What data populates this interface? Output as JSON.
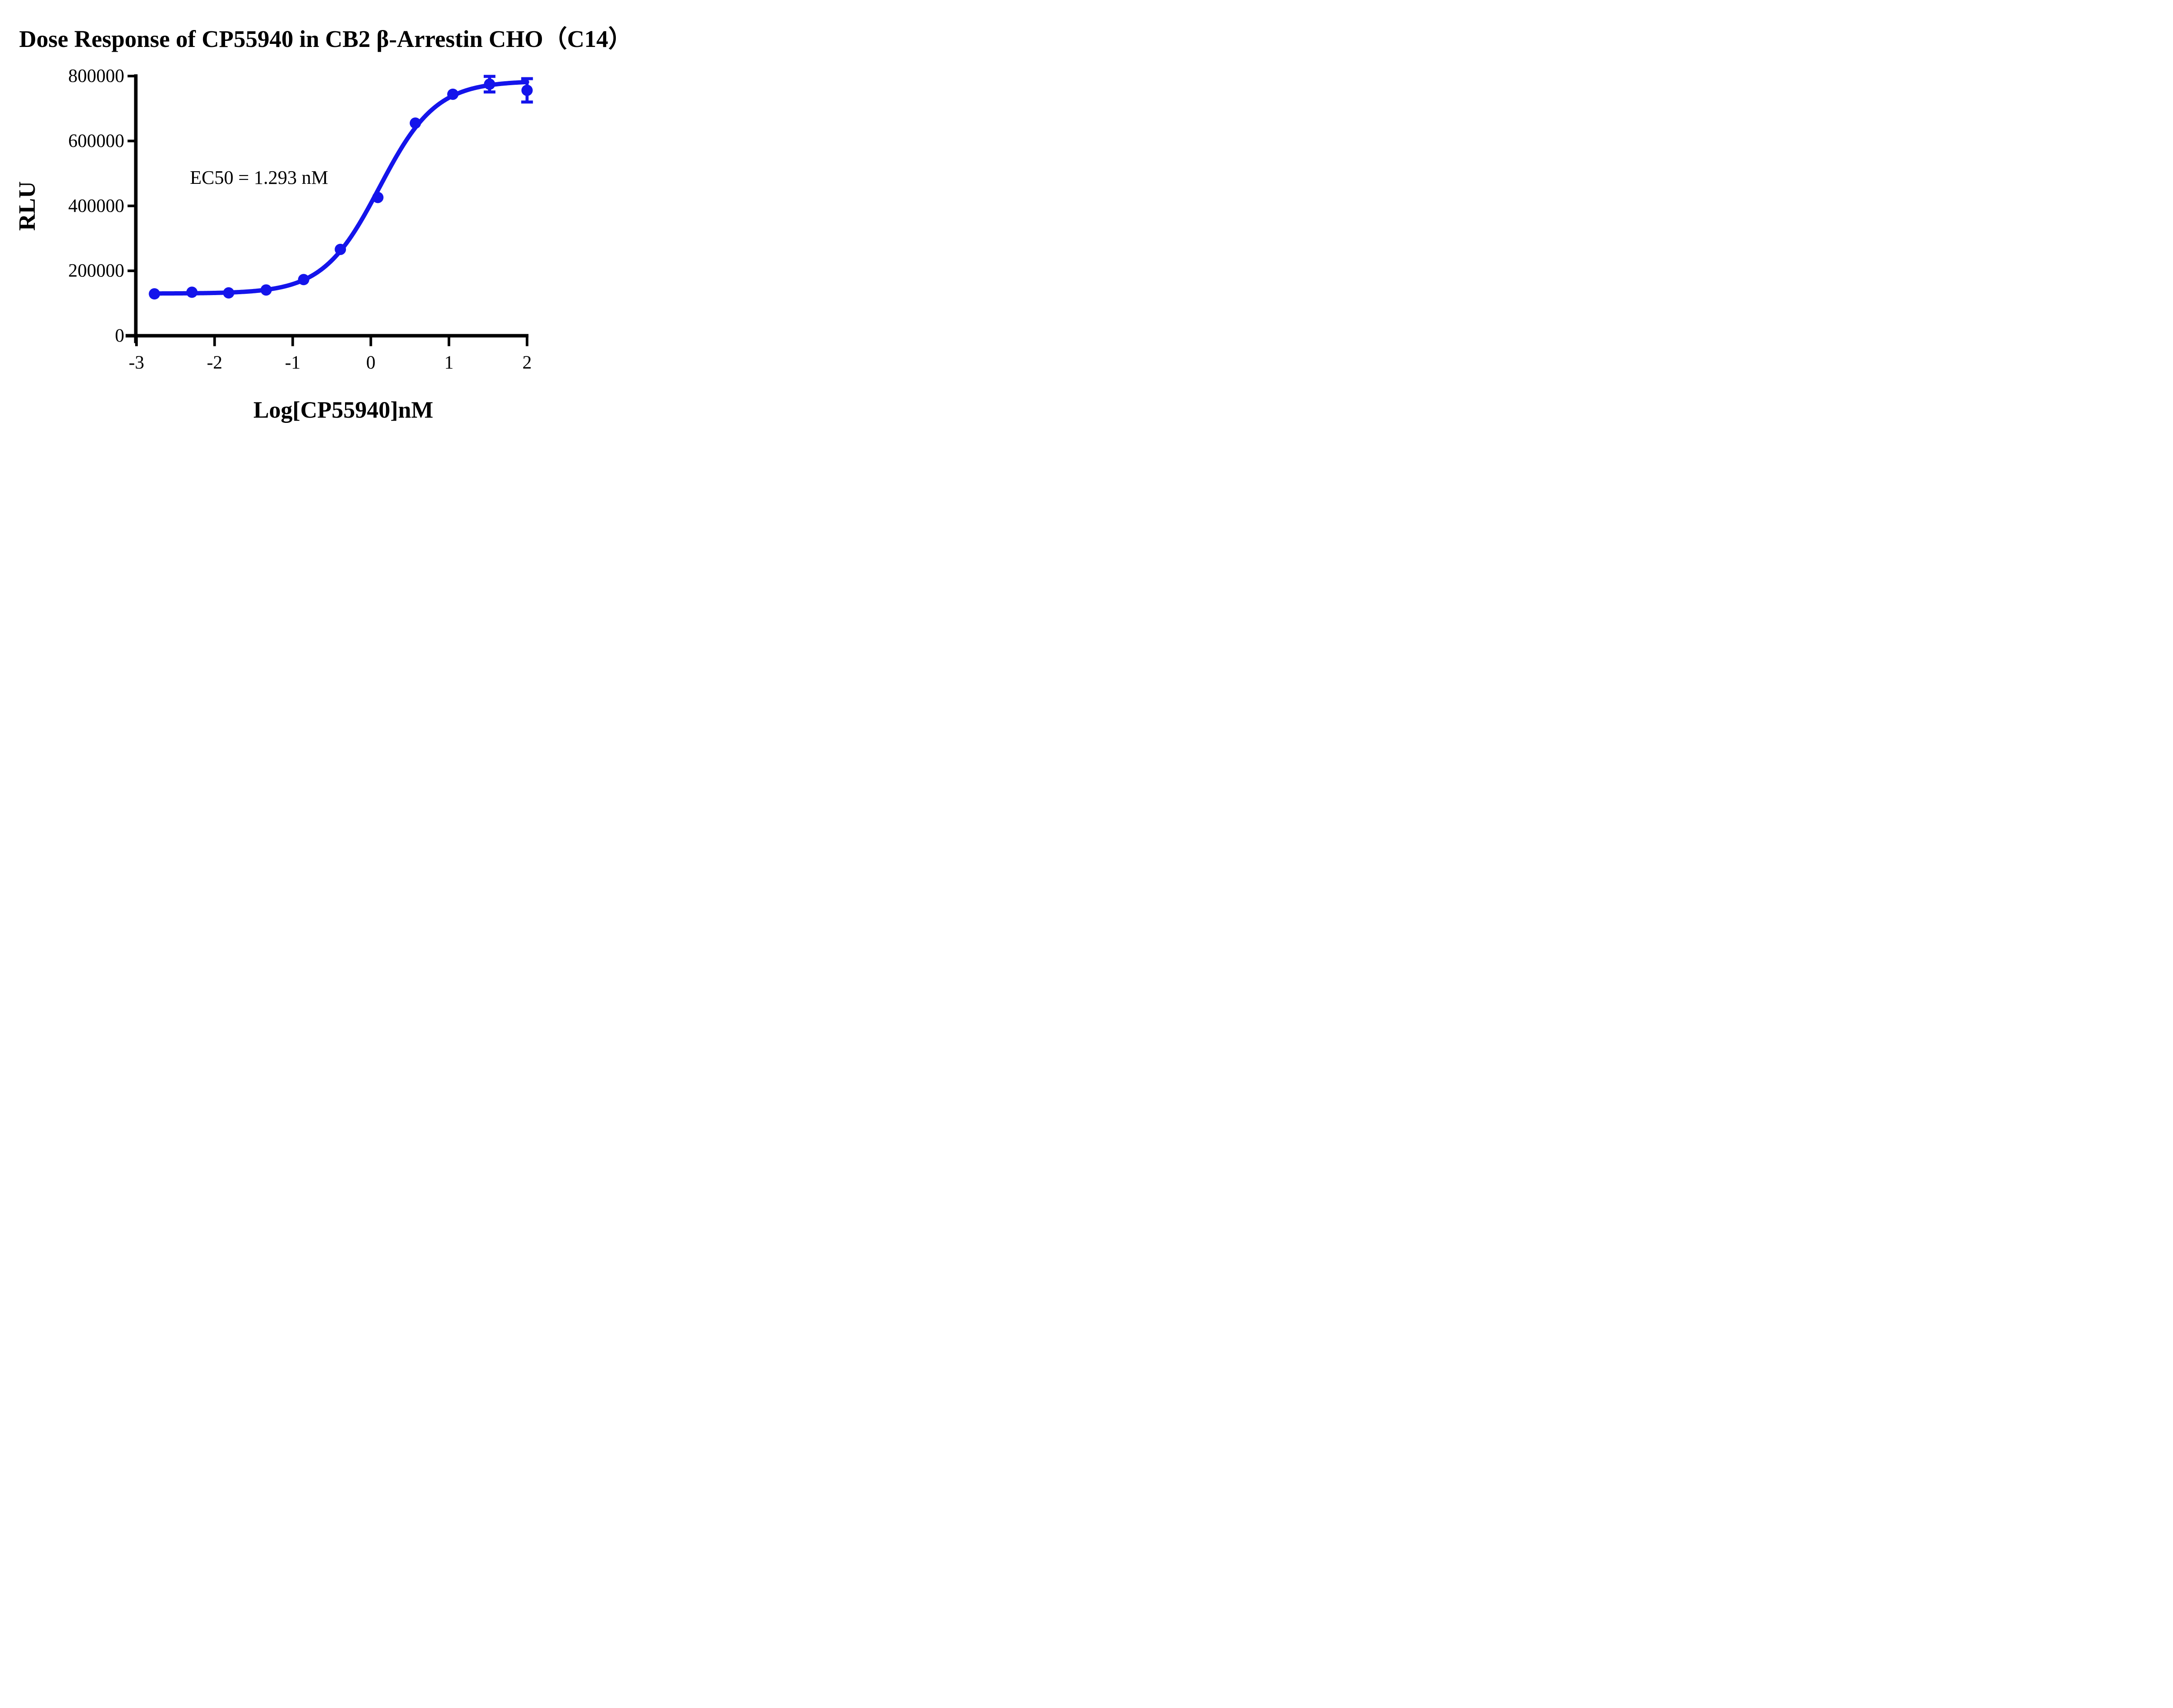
{
  "title": "Dose Response of CP55940 in CB2 β-Arrestin CHO（C14）",
  "annotation": "EC50 = 1.293 nM",
  "chart_data": {
    "type": "scatter",
    "title": "Dose Response of CP55940 in CB2 β-Arrestin CHO（C14）",
    "xlabel": "Log[CP55940]nM",
    "ylabel": "RLU",
    "annotation": "EC50 = 1.293 nM",
    "xlim": [
      -3,
      2
    ],
    "ylim": [
      0,
      800000
    ],
    "x_ticks": [
      "-3",
      "-2",
      "-1",
      "0",
      "1",
      "2"
    ],
    "x_tick_values": [
      -3,
      -2,
      -1,
      0,
      1,
      2
    ],
    "y_ticks": [
      "0",
      "200000",
      "400000",
      "600000",
      "800000"
    ],
    "y_tick_values": [
      0,
      200000,
      400000,
      600000,
      800000
    ],
    "grid": false,
    "legend": "none",
    "points": [
      {
        "x": -2.77,
        "y": 129000,
        "err": null
      },
      {
        "x": -2.29,
        "y": 134000,
        "err": null
      },
      {
        "x": -1.82,
        "y": 132000,
        "err": null
      },
      {
        "x": -1.34,
        "y": 141000,
        "err": null
      },
      {
        "x": -0.86,
        "y": 173000,
        "err": null
      },
      {
        "x": -0.39,
        "y": 266000,
        "err": null
      },
      {
        "x": 0.09,
        "y": 426000,
        "err": null
      },
      {
        "x": 0.57,
        "y": 655000,
        "err": null
      },
      {
        "x": 1.05,
        "y": 744000,
        "err": null
      },
      {
        "x": 1.52,
        "y": 775000,
        "err": 24000
      },
      {
        "x": 2.0,
        "y": 756000,
        "err": 36000
      }
    ],
    "fit_curve": {
      "model": "four-parameter-logistic",
      "bottom": 130000,
      "top": 785000,
      "ec50_nM": 1.293,
      "hill_slope": 1.2,
      "x_start": -2.77,
      "x_end": 2.0
    },
    "colors": {
      "series": "#1414eb",
      "axis": "#000000",
      "text": "#000000",
      "background": "#ffffff"
    }
  }
}
